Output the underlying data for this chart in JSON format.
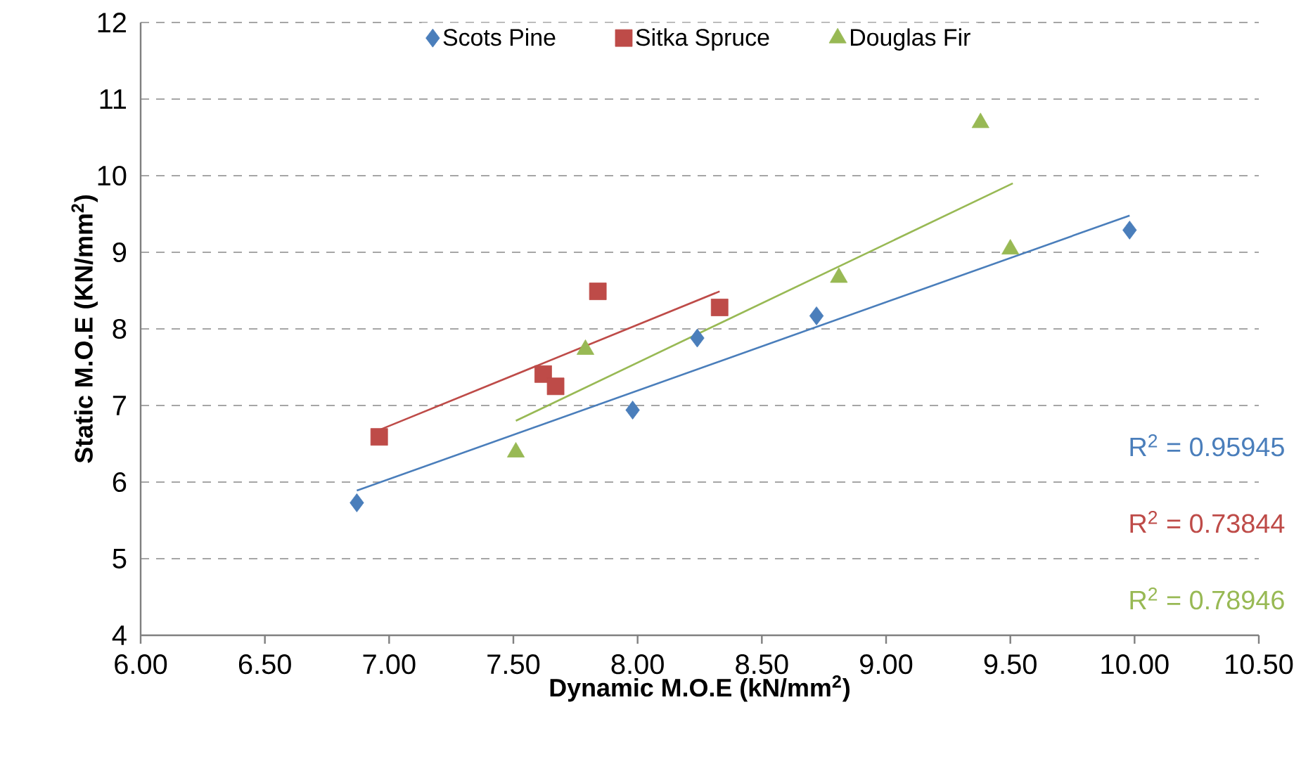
{
  "chart_data": {
    "type": "scatter",
    "xlabel": "Dynamic M.O.E (kN/mm$^{2}$)",
    "ylabel": "Static M.O.E (KN/mm$^{2}$)",
    "xlim": [
      6,
      10.5
    ],
    "ylim": [
      4,
      12
    ],
    "xticks": [
      {
        "value": 6,
        "label": "6.00"
      },
      {
        "value": 6.5,
        "label": "6.50"
      },
      {
        "value": 7,
        "label": "7.00"
      },
      {
        "value": 7.5,
        "label": "7.50"
      },
      {
        "value": 8,
        "label": "8.00"
      },
      {
        "value": 8.5,
        "label": "8.50"
      },
      {
        "value": 9,
        "label": "9.00"
      },
      {
        "value": 9.5,
        "label": "9.50"
      },
      {
        "value": 10,
        "label": "10.00"
      },
      {
        "value": 10.5,
        "label": "10.50"
      }
    ],
    "yticks": [
      4,
      5,
      6,
      7,
      8,
      9,
      10,
      11,
      12
    ],
    "grid": "y",
    "legend": "top",
    "series": [
      {
        "name": "Scots Pine",
        "color": "#4a7ebb",
        "marker": "diamond",
        "x": [
          6.87,
          7.98,
          8.24,
          8.72,
          9.98
        ],
        "values": [
          5.73,
          6.94,
          7.88,
          8.17,
          9.29
        ]
      },
      {
        "name": "Sitka Spruce",
        "color": "#be4b48",
        "marker": "square",
        "x": [
          6.96,
          7.62,
          7.67,
          7.84,
          8.33
        ],
        "values": [
          6.59,
          7.41,
          7.25,
          8.49,
          8.28
        ]
      },
      {
        "name": "Douglas Fir",
        "color": "#98b954",
        "marker": "triangle",
        "x": [
          7.51,
          7.79,
          8.81,
          9.38,
          9.5
        ],
        "values": [
          6.39,
          7.73,
          8.67,
          10.69,
          9.04
        ]
      },
      {
        "type": "line",
        "color": "#4a7ebb",
        "marker": "none",
        "x": [
          6.87,
          9.98
        ],
        "values": [
          5.89,
          9.48
        ]
      },
      {
        "type": "line",
        "color": "#be4b48",
        "marker": "none",
        "x": [
          6.96,
          8.33
        ],
        "values": [
          6.68,
          8.49
        ]
      },
      {
        "type": "line",
        "color": "#98b954",
        "marker": "none",
        "x": [
          7.51,
          9.51
        ],
        "values": [
          6.8,
          9.9
        ]
      }
    ],
    "annotations": [
      "R$^{2}$ = 0.95945",
      "R$^{2}$ = 0.73844",
      "R$^{2}$ = 0.78946"
    ]
  }
}
